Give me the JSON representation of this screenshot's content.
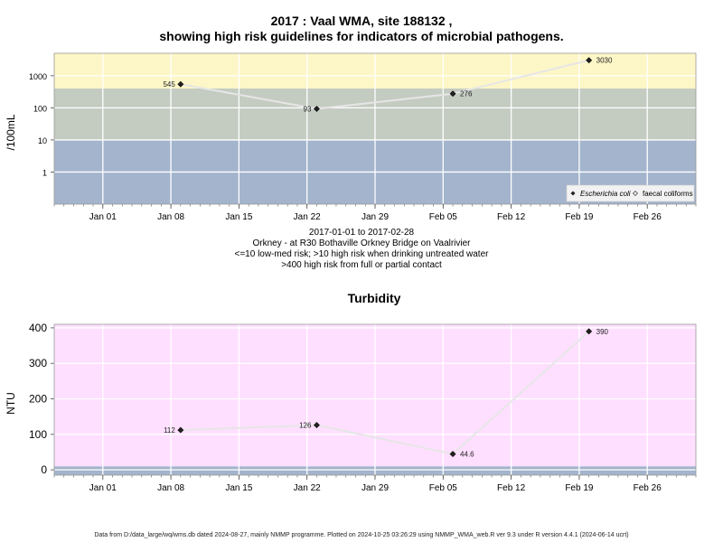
{
  "header": {
    "title_line1": "2017 : Vaal WMA, site 188132 ,",
    "title_line2": "showing high risk guidelines for indicators of microbial pathogens."
  },
  "subtitle": {
    "line1": "2017-01-01 to 2017-02-28",
    "line2": "Orkney - at R30 Bothaville Orkney Bridge on Vaalrivier",
    "line3": "<=10 low-med risk; >10 high risk when drinking untreated water",
    "line4": ">400 high risk from full or partial contact"
  },
  "footer": {
    "text": "Data from D:/data_large/wq/wms.db dated 2024-08-27, mainly NMMP programme. Plotted on 2024-10-25 03:26:29 using NMMP_WMA_web.R ver 9.3 under R version 4.4.1 (2024-06-14 ucrt)"
  },
  "chart_data": [
    {
      "type": "line",
      "title": "2017 : Vaal WMA, site 188132 , showing high risk guidelines for indicators of microbial pathogens.",
      "ylabel": "/100mL",
      "yscale": "log",
      "ylim": [
        0.1,
        5000
      ],
      "yticks": [
        "1",
        "10",
        "100",
        "1000"
      ],
      "xlim": [
        "2016-12-27",
        "2017-03-03"
      ],
      "xticks": [
        "Jan 01",
        "Jan 08",
        "Jan 15",
        "Jan 22",
        "Jan 29",
        "Feb 05",
        "Feb 12",
        "Feb 19",
        "Feb 26"
      ],
      "bands": [
        {
          "from": 0.1,
          "to": 10,
          "color": "#a3b4cc"
        },
        {
          "from": 10,
          "to": 400,
          "color": "#c4ccc2"
        },
        {
          "from": 400,
          "to": 5000,
          "color": "#fdf6c6"
        }
      ],
      "legend": {
        "position": "bottom-right",
        "entries": [
          "Escherichia coli",
          "faecal coliforms"
        ]
      },
      "series": [
        {
          "name": "Escherichia coli",
          "x": [
            "2017-01-09",
            "2017-01-23",
            "2017-02-06",
            "2017-02-20"
          ],
          "y": [
            545,
            93,
            276,
            3030
          ],
          "labels": [
            "545",
            "93",
            "276",
            "3030"
          ]
        }
      ]
    },
    {
      "type": "line",
      "title": "Turbidity",
      "ylabel": "NTU",
      "ylim": [
        -15,
        410
      ],
      "yticks": [
        "0",
        "100",
        "200",
        "300",
        "400"
      ],
      "xlim": [
        "2016-12-27",
        "2017-03-03"
      ],
      "xticks": [
        "Jan 01",
        "Jan 08",
        "Jan 15",
        "Jan 22",
        "Jan 29",
        "Feb 05",
        "Feb 12",
        "Feb 19",
        "Feb 26"
      ],
      "bands": [
        {
          "from": -15,
          "to": 10,
          "color": "#a3b4cc"
        },
        {
          "from": 10,
          "to": 410,
          "color": "#ffdfff"
        }
      ],
      "series": [
        {
          "x": [
            "2017-01-09",
            "2017-01-23",
            "2017-02-06",
            "2017-02-20"
          ],
          "y": [
            112,
            126,
            44.6,
            390
          ],
          "labels": [
            "112",
            "126",
            "44.6",
            "390"
          ]
        }
      ]
    }
  ]
}
